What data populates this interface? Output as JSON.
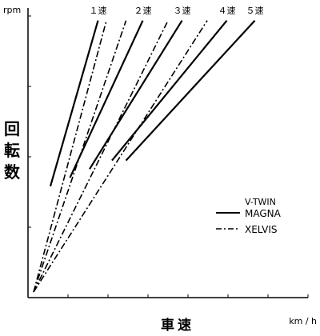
{
  "chart_data": {
    "type": "line",
    "title": "",
    "x_unit": "km / h",
    "y_unit": "rpm",
    "xlabel": "車速",
    "ylabel": "回転数",
    "xlim": [
      0,
      100
    ],
    "ylim": [
      0,
      100
    ],
    "gear_labels": [
      "１速",
      "２速",
      "３速",
      "４速",
      "５速"
    ],
    "series": [
      {
        "name": "MAGNA",
        "style": "solid",
        "lines": [
          {
            "gear": "１速",
            "x": [
              8,
              25
            ],
            "y": [
              39,
              97
            ]
          },
          {
            "gear": "２速",
            "x": [
              15,
              41
            ],
            "y": [
              42,
              97
            ]
          },
          {
            "gear": "３速",
            "x": [
              22,
              55
            ],
            "y": [
              45,
              97
            ]
          },
          {
            "gear": "４速",
            "x": [
              30,
              71
            ],
            "y": [
              48,
              97
            ]
          },
          {
            "gear": "５速",
            "x": [
              35,
              81
            ],
            "y": [
              48,
              97
            ]
          }
        ]
      },
      {
        "name": "XELVIS",
        "style": "dash-dot",
        "lines": [
          {
            "gear": "１速",
            "x": [
              2,
              28
            ],
            "y": [
              2,
              97
            ]
          },
          {
            "gear": "２速",
            "x": [
              2,
              35
            ],
            "y": [
              2,
              97
            ]
          },
          {
            "gear": "３速",
            "x": [
              2,
              50
            ],
            "y": [
              2,
              97
            ]
          },
          {
            "gear": "４速",
            "x": [
              2,
              64
            ],
            "y": [
              2,
              97
            ]
          }
        ]
      }
    ],
    "legend": {
      "title": "V-TWIN",
      "position": "bottom-right",
      "entries": [
        {
          "label": "MAGNA",
          "style": "solid"
        },
        {
          "label": "XELVIS",
          "style": "dash-dot"
        }
      ]
    },
    "y_ticks": 4,
    "x_ticks": 7,
    "grid": false
  }
}
